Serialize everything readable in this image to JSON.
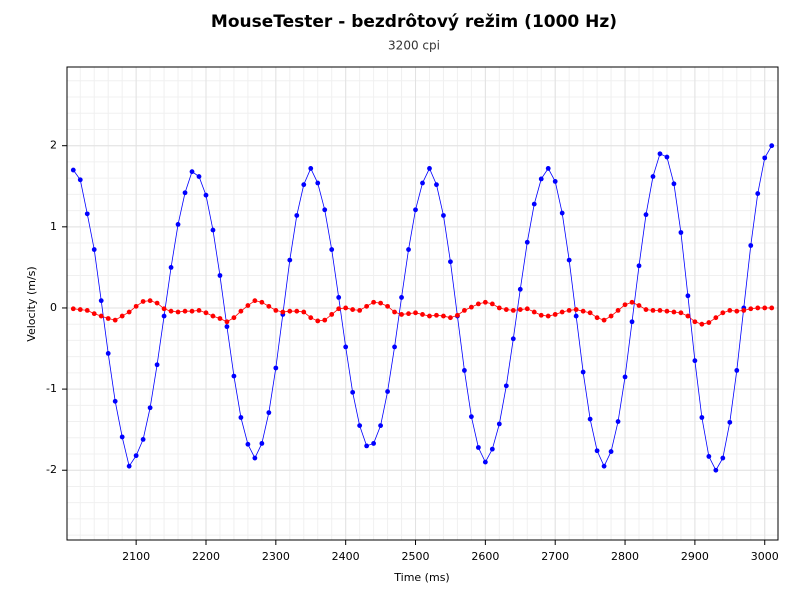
{
  "chart_data": {
    "type": "line",
    "markers": true,
    "title": "MouseTester - bezdrôtový režim (1000 Hz)",
    "subtitle": "3200 cpi",
    "xlabel": "Time (ms)",
    "ylabel": "Velocity (m/s)",
    "x": [
      2010,
      2020,
      2030,
      2040,
      2050,
      2060,
      2070,
      2080,
      2090,
      2100,
      2110,
      2120,
      2130,
      2140,
      2150,
      2160,
      2170,
      2180,
      2190,
      2200,
      2210,
      2220,
      2230,
      2240,
      2250,
      2260,
      2270,
      2280,
      2290,
      2300,
      2310,
      2320,
      2330,
      2340,
      2350,
      2360,
      2370,
      2380,
      2390,
      2400,
      2410,
      2420,
      2430,
      2440,
      2450,
      2460,
      2470,
      2480,
      2490,
      2500,
      2510,
      2520,
      2530,
      2540,
      2550,
      2560,
      2570,
      2580,
      2590,
      2600,
      2610,
      2620,
      2630,
      2640,
      2650,
      2660,
      2670,
      2680,
      2690,
      2700,
      2710,
      2720,
      2730,
      2740,
      2750,
      2760,
      2770,
      2780,
      2790,
      2800,
      2810,
      2820,
      2830,
      2840,
      2850,
      2860,
      2870,
      2880,
      2890,
      2900,
      2910,
      2920,
      2930,
      2940,
      2950,
      2960,
      2970,
      2980,
      2990,
      3000,
      3010
    ],
    "series": [
      {
        "color": "#0000ff",
        "values": [
          1.7,
          1.58,
          1.16,
          0.72,
          0.09,
          -0.56,
          -1.15,
          -1.59,
          -1.95,
          -1.82,
          -1.62,
          -1.23,
          -0.7,
          -0.1,
          0.5,
          1.03,
          1.42,
          1.68,
          1.62,
          1.39,
          0.96,
          0.4,
          -0.23,
          -0.84,
          -1.35,
          -1.68,
          -1.85,
          -1.67,
          -1.29,
          -0.74,
          -0.08,
          0.59,
          1.14,
          1.52,
          1.72,
          1.54,
          1.21,
          0.72,
          0.13,
          -0.48,
          -1.04,
          -1.45,
          -1.7,
          -1.67,
          -1.45,
          -1.03,
          -0.48,
          0.13,
          0.72,
          1.21,
          1.54,
          1.72,
          1.52,
          1.14,
          0.57,
          -0.1,
          -0.77,
          -1.34,
          -1.72,
          -1.9,
          -1.74,
          -1.43,
          -0.96,
          -0.38,
          0.23,
          0.81,
          1.28,
          1.59,
          1.72,
          1.56,
          1.17,
          0.59,
          -0.1,
          -0.79,
          -1.37,
          -1.76,
          -1.95,
          -1.77,
          -1.4,
          -0.85,
          -0.17,
          0.52,
          1.15,
          1.62,
          1.9,
          1.86,
          1.53,
          0.93,
          0.15,
          -0.65,
          -1.35,
          -1.83,
          -2.0,
          -1.85,
          -1.41,
          -0.77,
          0.0,
          0.77,
          1.41,
          1.85,
          2.0
        ]
      },
      {
        "color": "#ff0000",
        "values": [
          -0.01,
          -0.02,
          -0.03,
          -0.07,
          -0.1,
          -0.13,
          -0.15,
          -0.1,
          -0.05,
          0.02,
          0.08,
          0.09,
          0.06,
          -0.01,
          -0.04,
          -0.05,
          -0.04,
          -0.04,
          -0.03,
          -0.06,
          -0.1,
          -0.13,
          -0.17,
          -0.12,
          -0.04,
          0.03,
          0.09,
          0.07,
          0.02,
          -0.03,
          -0.05,
          -0.04,
          -0.04,
          -0.05,
          -0.12,
          -0.16,
          -0.15,
          -0.08,
          -0.01,
          0.0,
          -0.02,
          -0.03,
          0.02,
          0.07,
          0.06,
          0.02,
          -0.05,
          -0.08,
          -0.07,
          -0.06,
          -0.08,
          -0.1,
          -0.09,
          -0.1,
          -0.12,
          -0.09,
          -0.03,
          0.01,
          0.05,
          0.07,
          0.05,
          0.0,
          -0.02,
          -0.03,
          -0.02,
          -0.01,
          -0.05,
          -0.09,
          -0.1,
          -0.08,
          -0.05,
          -0.03,
          -0.02,
          -0.04,
          -0.06,
          -0.12,
          -0.15,
          -0.1,
          -0.03,
          0.04,
          0.07,
          0.03,
          -0.02,
          -0.03,
          -0.03,
          -0.04,
          -0.05,
          -0.06,
          -0.1,
          -0.17,
          -0.2,
          -0.18,
          -0.12,
          -0.06,
          -0.03,
          -0.04,
          -0.03,
          -0.01,
          0.0,
          0.0,
          0.0
        ]
      }
    ],
    "xlim": [
      2001,
      3019
    ],
    "ylim": [
      -2.86,
      2.97
    ],
    "xticks": [
      2100,
      2200,
      2300,
      2400,
      2500,
      2600,
      2700,
      2800,
      2900,
      3000
    ],
    "yticks": [
      -2,
      -1,
      0,
      1,
      2
    ],
    "grid": true,
    "minor_grid": true
  }
}
